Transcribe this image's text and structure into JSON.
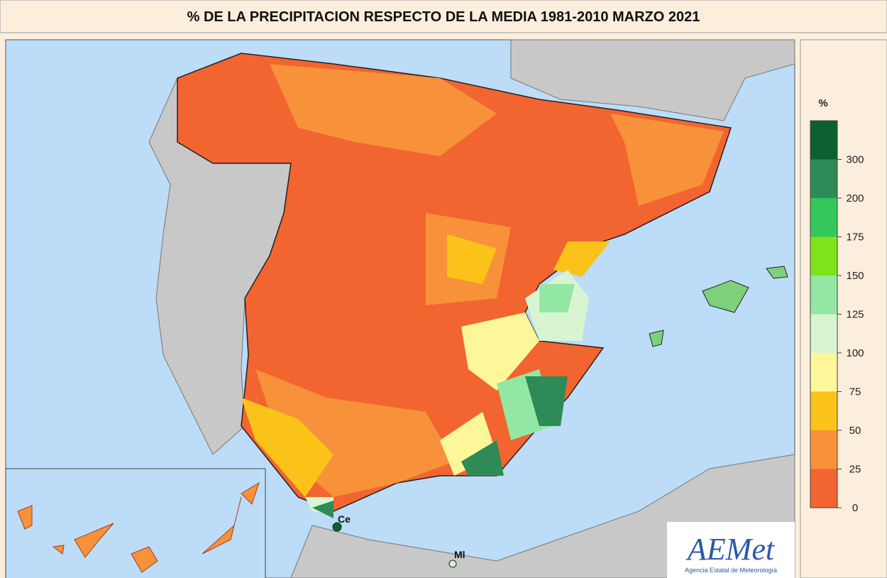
{
  "header": {
    "title": "% DE LA PRECIPITACION RESPECTO DE LA MEDIA 1981-2010 MARZO 2021"
  },
  "legend": {
    "title": "%",
    "ticks": [
      0,
      25,
      50,
      75,
      100,
      125,
      150,
      175,
      200,
      300
    ],
    "colors": [
      "#f26430",
      "#f7923a",
      "#fbc319",
      "#fdf79a",
      "#d8f5d2",
      "#92e8a3",
      "#7fe31a",
      "#34c759",
      "#2e8b57",
      "#0b6130"
    ]
  },
  "places": [
    {
      "label": "Ce"
    },
    {
      "label": "Ml"
    }
  ],
  "logo": {
    "name": "AEMet",
    "subtitle": "Agencia Estatal de Meteorología"
  }
}
